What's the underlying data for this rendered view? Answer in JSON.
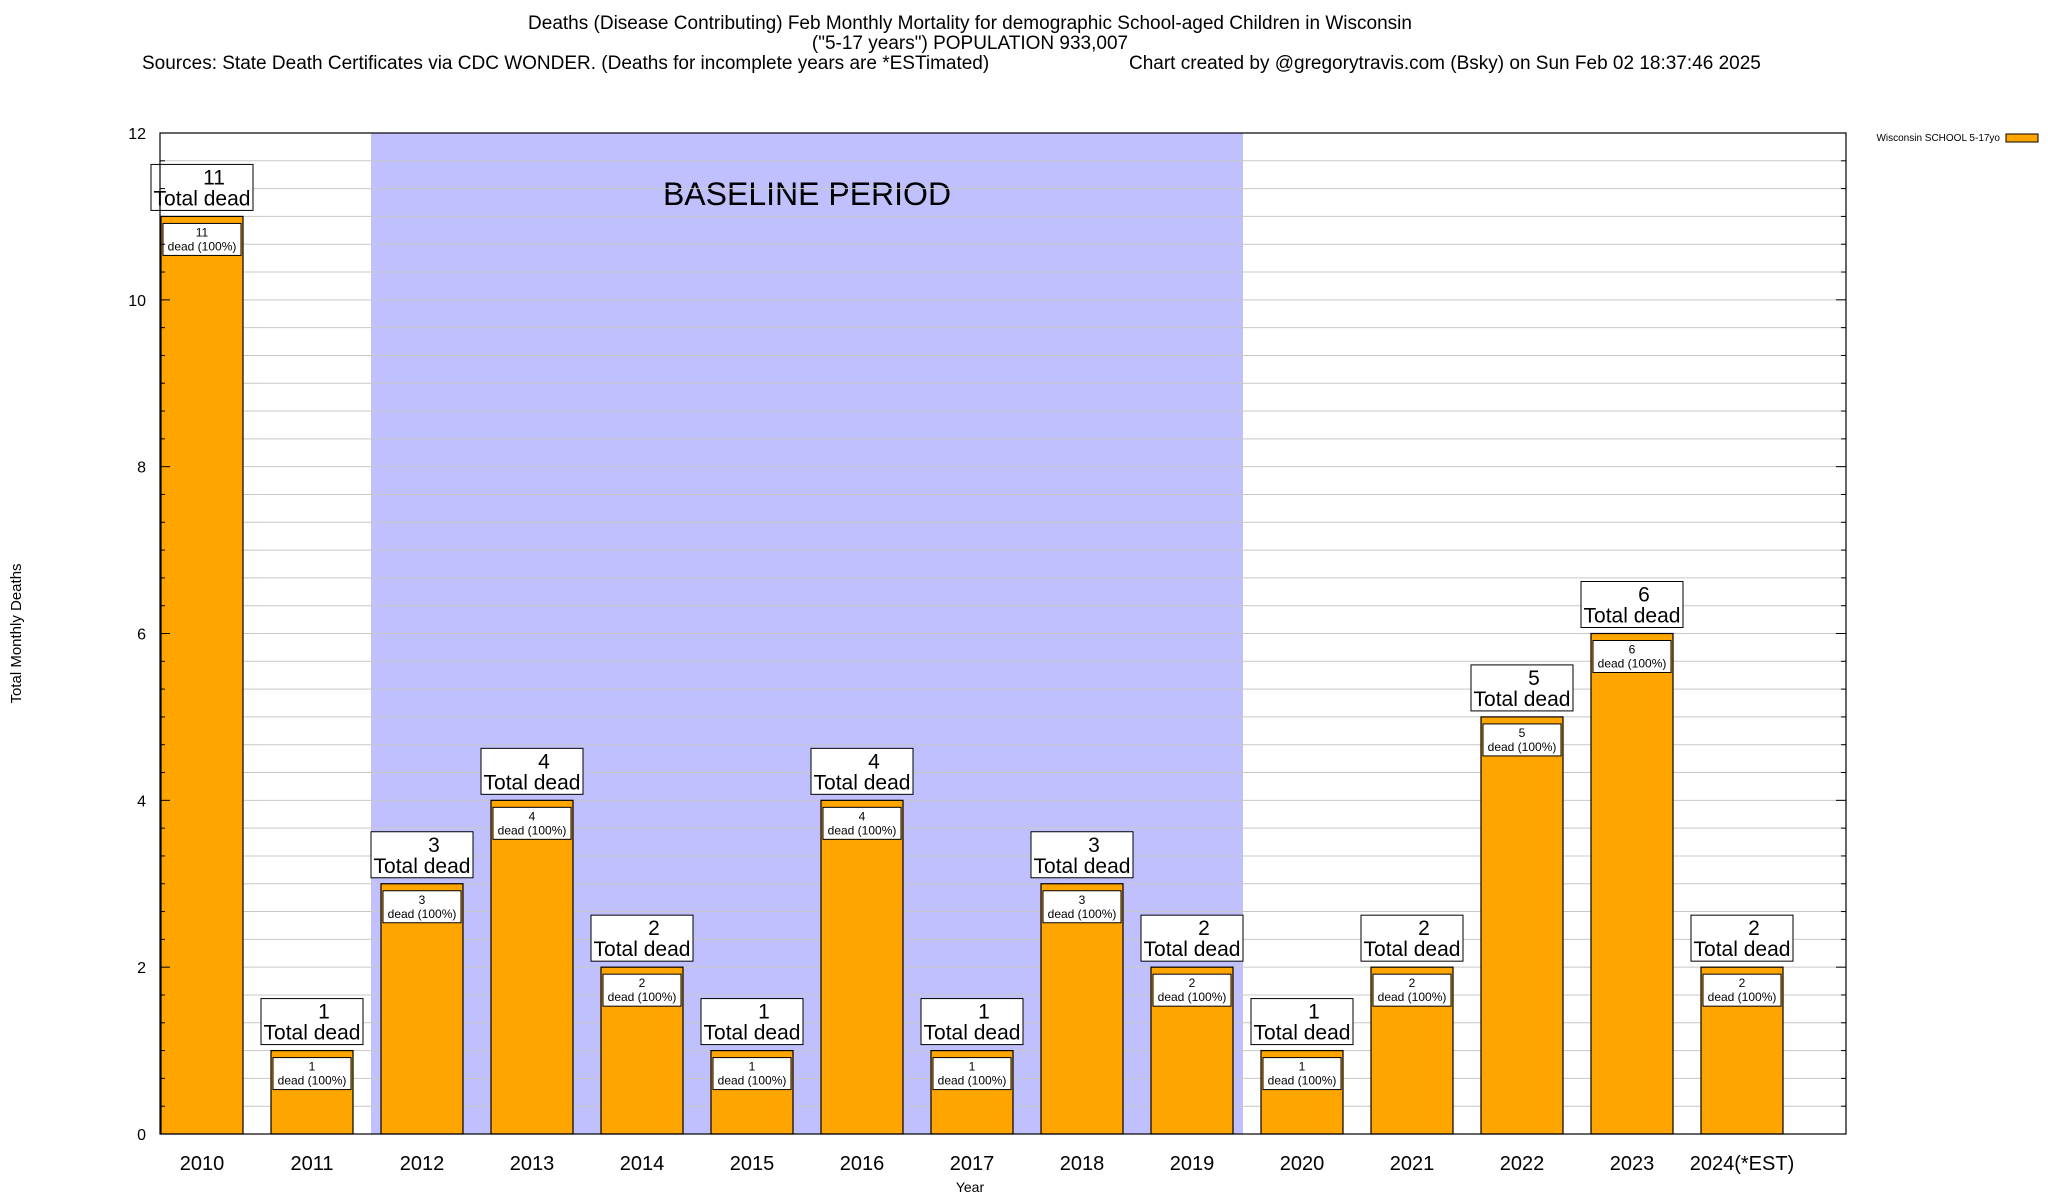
{
  "chart_data": {
    "type": "bar",
    "title_lines": [
      "Deaths (Disease Contributing) Feb Monthly Mortality for demographic School-aged Children in Wisconsin",
      "(\"5-17 years\") POPULATION 933,007"
    ],
    "source_text": "Sources: State Death Certificates via CDC WONDER. (Deaths for incomplete years are *ESTimated)",
    "credit_text": "Chart created by @gregorytravis.com (Bsky) on Sun Feb 02 18:37:46 2025",
    "xlabel": "Year",
    "ylabel": "Total Monthly Deaths",
    "ylim": [
      0,
      12
    ],
    "y_ticks": [
      0,
      2,
      4,
      6,
      8,
      10,
      12
    ],
    "categories": [
      "2010",
      "2011",
      "2012",
      "2013",
      "2014",
      "2015",
      "2016",
      "2017",
      "2018",
      "2019",
      "2020",
      "2021",
      "2022",
      "2023",
      "2024(*EST)"
    ],
    "series": [
      {
        "name": "Wisconsin SCHOOL 5-17yo",
        "color": "#FFA500",
        "values": [
          11,
          1,
          3,
          4,
          2,
          1,
          4,
          1,
          3,
          2,
          1,
          2,
          5,
          6,
          2
        ]
      }
    ],
    "total_label_suffix": "Total dead",
    "inner_label_suffix": "dead (100%)",
    "baseline": {
      "label": "BASELINE PERIOD",
      "from": "2012",
      "to": "2019",
      "color": "#C0C0FF"
    },
    "grid": true,
    "legend_position": "top-right"
  }
}
